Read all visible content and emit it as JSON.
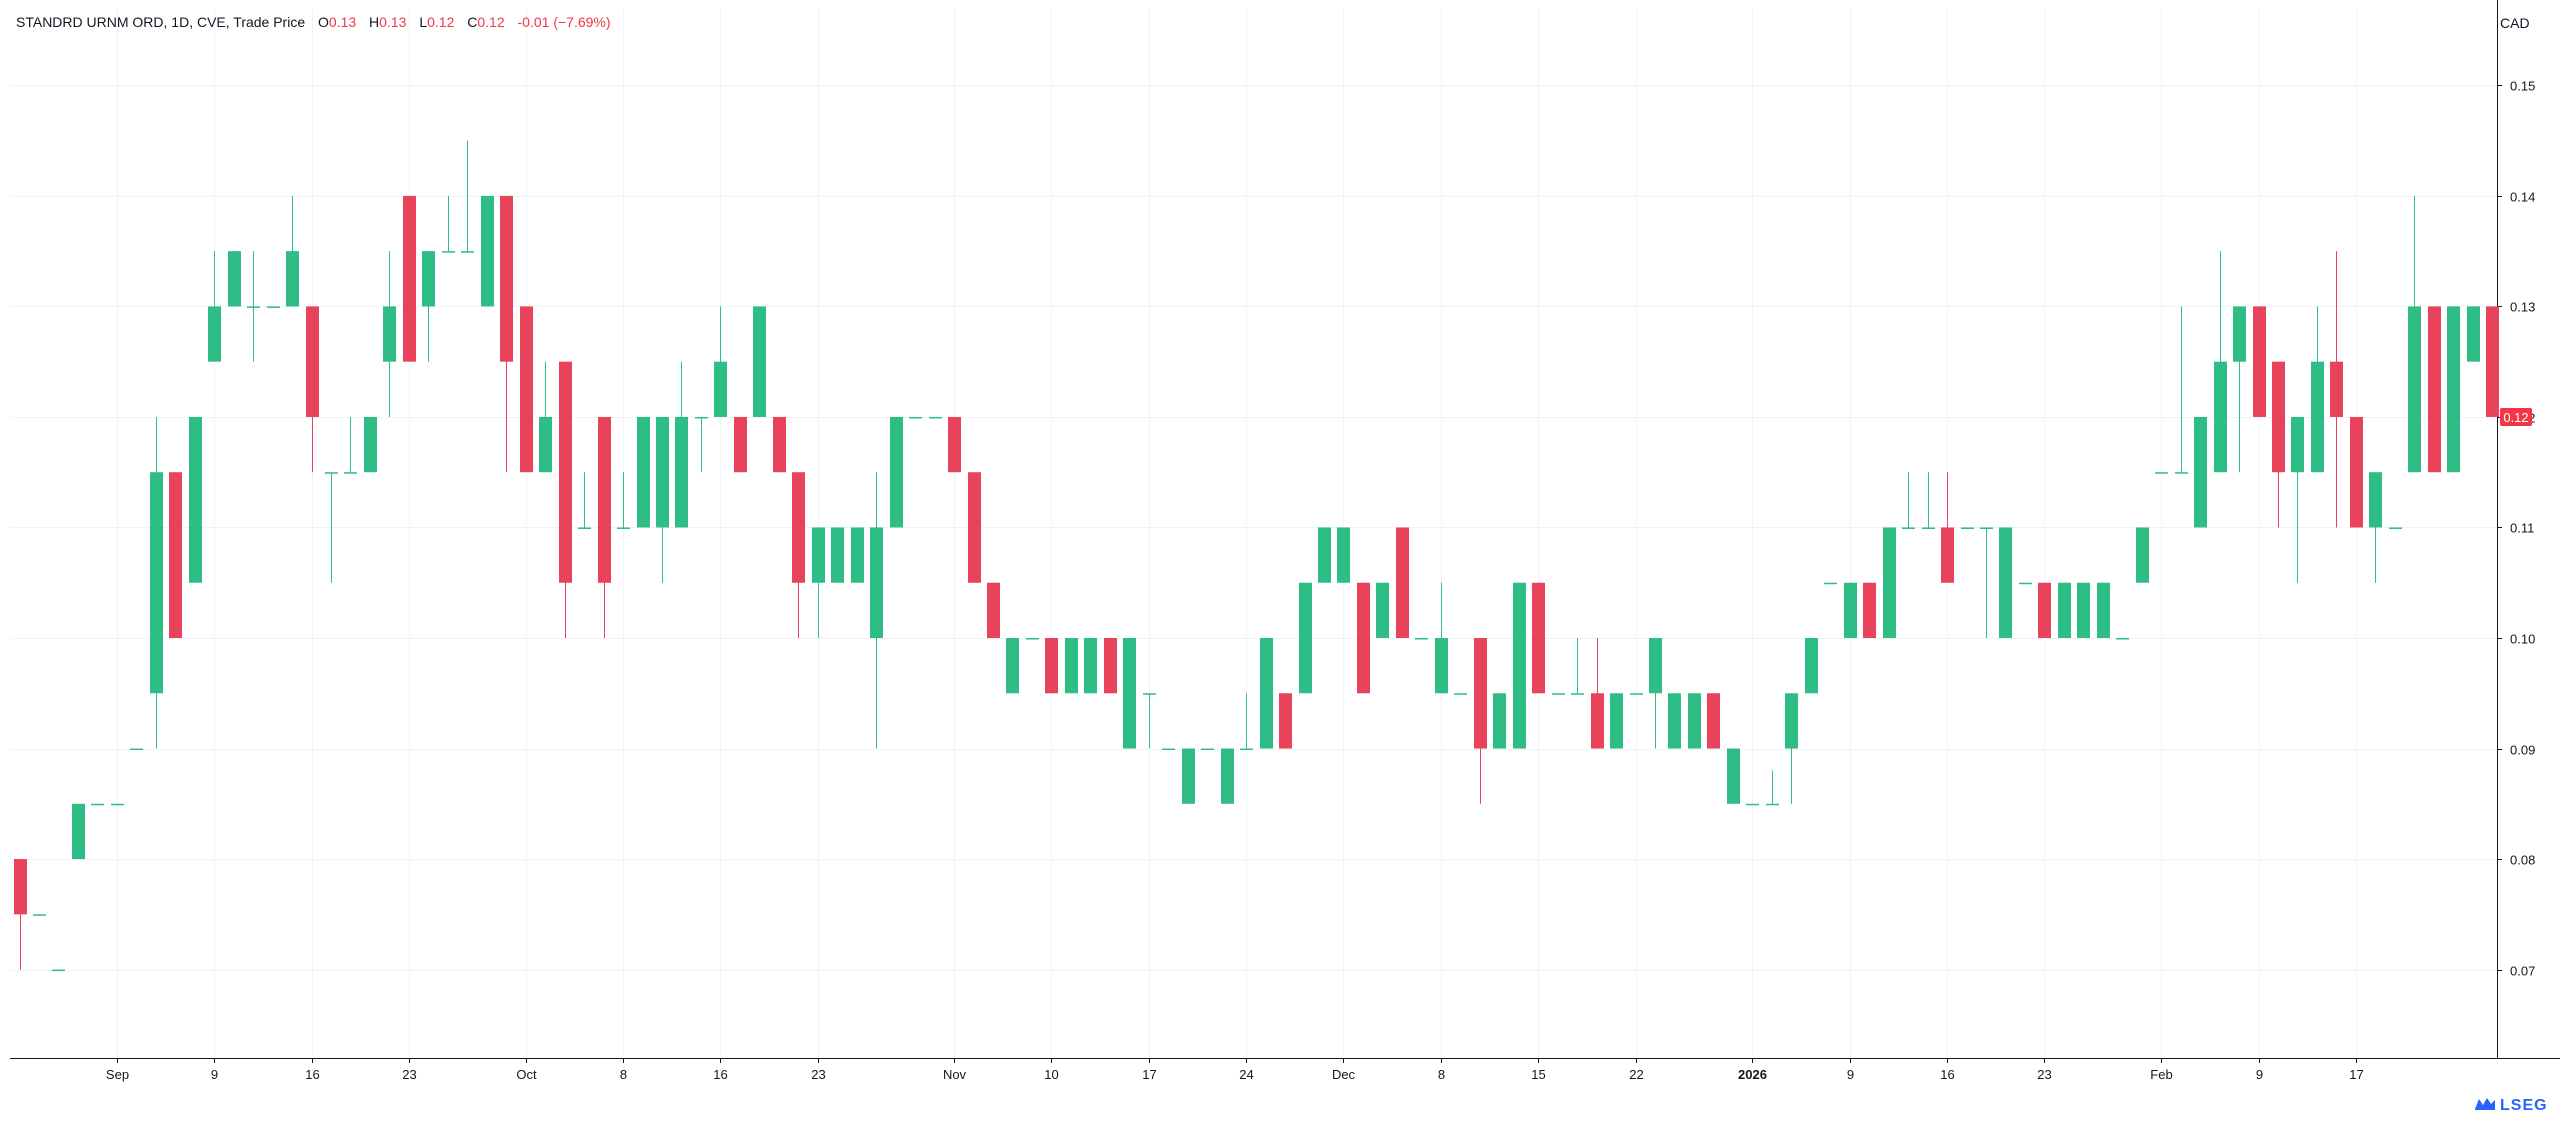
{
  "legend": {
    "symbol": "STANDRD URNM ORD, 1D, CVE, Trade Price",
    "open_key": "O",
    "open": "0.13",
    "high_key": "H",
    "high": "0.13",
    "low_key": "L",
    "low": "0.12",
    "close_key": "C",
    "close": "0.12",
    "change": "-0.01 (−7.69%)"
  },
  "currency": "CAD",
  "brand": "LSEG",
  "colors": {
    "up": "#2ebd85",
    "down": "#e8435a",
    "grid": "#f0f3fa",
    "axis": "#131722",
    "last_price_bg": "#f23645"
  },
  "chart_data": {
    "type": "candlestick",
    "ylim": [
      0.062,
      0.157
    ],
    "y_ticks": [
      "0.07",
      "0.08",
      "0.09",
      "0.10",
      "0.11",
      "0.12",
      "0.13",
      "0.14",
      "0.15"
    ],
    "x_ticks": [
      {
        "label": "Sep",
        "i": 5,
        "bold": false
      },
      {
        "label": "9",
        "i": 10,
        "bold": false
      },
      {
        "label": "16",
        "i": 15,
        "bold": false
      },
      {
        "label": "23",
        "i": 20,
        "bold": false
      },
      {
        "label": "Oct",
        "i": 26,
        "bold": false
      },
      {
        "label": "8",
        "i": 31,
        "bold": false
      },
      {
        "label": "16",
        "i": 36,
        "bold": false
      },
      {
        "label": "23",
        "i": 41,
        "bold": false
      },
      {
        "label": "Nov",
        "i": 48,
        "bold": false
      },
      {
        "label": "10",
        "i": 53,
        "bold": false
      },
      {
        "label": "17",
        "i": 58,
        "bold": false
      },
      {
        "label": "24",
        "i": 63,
        "bold": false
      },
      {
        "label": "Dec",
        "i": 68,
        "bold": false
      },
      {
        "label": "8",
        "i": 73,
        "bold": false
      },
      {
        "label": "15",
        "i": 78,
        "bold": false
      },
      {
        "label": "22",
        "i": 83,
        "bold": false
      },
      {
        "label": "2026",
        "i": 89,
        "bold": true
      },
      {
        "label": "9",
        "i": 94,
        "bold": false
      },
      {
        "label": "16",
        "i": 99,
        "bold": false
      },
      {
        "label": "23",
        "i": 104,
        "bold": false
      },
      {
        "label": "Feb",
        "i": 110,
        "bold": false
      },
      {
        "label": "9",
        "i": 115,
        "bold": false
      },
      {
        "label": "17",
        "i": 120,
        "bold": false
      }
    ],
    "last_price": "0.12",
    "ohlc": [
      [
        0.08,
        0.08,
        0.07,
        0.075
      ],
      [
        0.075,
        0.075,
        0.075,
        0.075
      ],
      [
        0.07,
        0.07,
        0.07,
        0.07
      ],
      [
        0.08,
        0.085,
        0.08,
        0.085
      ],
      [
        0.085,
        0.085,
        0.085,
        0.085
      ],
      [
        0.085,
        0.085,
        0.085,
        0.085
      ],
      [
        0.09,
        0.09,
        0.09,
        0.09
      ],
      [
        0.095,
        0.12,
        0.09,
        0.115
      ],
      [
        0.115,
        0.115,
        0.1,
        0.1
      ],
      [
        0.105,
        0.12,
        0.105,
        0.12
      ],
      [
        0.125,
        0.135,
        0.125,
        0.13
      ],
      [
        0.13,
        0.135,
        0.13,
        0.135
      ],
      [
        0.13,
        0.135,
        0.125,
        0.13
      ],
      [
        0.13,
        0.13,
        0.13,
        0.13
      ],
      [
        0.13,
        0.14,
        0.13,
        0.135
      ],
      [
        0.13,
        0.13,
        0.115,
        0.12
      ],
      [
        0.115,
        0.115,
        0.105,
        0.115
      ],
      [
        0.115,
        0.12,
        0.115,
        0.115
      ],
      [
        0.115,
        0.12,
        0.115,
        0.12
      ],
      [
        0.125,
        0.135,
        0.12,
        0.13
      ],
      [
        0.14,
        0.14,
        0.125,
        0.125
      ],
      [
        0.13,
        0.135,
        0.125,
        0.135
      ],
      [
        0.135,
        0.14,
        0.135,
        0.135
      ],
      [
        0.135,
        0.145,
        0.135,
        0.135
      ],
      [
        0.13,
        0.14,
        0.13,
        0.14
      ],
      [
        0.14,
        0.14,
        0.115,
        0.125
      ],
      [
        0.13,
        0.13,
        0.115,
        0.115
      ],
      [
        0.115,
        0.125,
        0.115,
        0.12
      ],
      [
        0.125,
        0.125,
        0.1,
        0.105
      ],
      [
        0.11,
        0.115,
        0.11,
        0.11
      ],
      [
        0.12,
        0.12,
        0.1,
        0.105
      ],
      [
        0.11,
        0.115,
        0.11,
        0.11
      ],
      [
        0.11,
        0.12,
        0.11,
        0.12
      ],
      [
        0.11,
        0.12,
        0.105,
        0.12
      ],
      [
        0.11,
        0.125,
        0.11,
        0.12
      ],
      [
        0.12,
        0.12,
        0.115,
        0.12
      ],
      [
        0.12,
        0.13,
        0.12,
        0.125
      ],
      [
        0.12,
        0.12,
        0.115,
        0.115
      ],
      [
        0.12,
        0.13,
        0.12,
        0.13
      ],
      [
        0.12,
        0.12,
        0.115,
        0.115
      ],
      [
        0.115,
        0.115,
        0.1,
        0.105
      ],
      [
        0.105,
        0.11,
        0.1,
        0.11
      ],
      [
        0.105,
        0.11,
        0.105,
        0.11
      ],
      [
        0.105,
        0.11,
        0.105,
        0.11
      ],
      [
        0.1,
        0.115,
        0.09,
        0.11
      ],
      [
        0.11,
        0.12,
        0.11,
        0.12
      ],
      [
        0.12,
        0.12,
        0.12,
        0.12
      ],
      [
        0.12,
        0.12,
        0.12,
        0.12
      ],
      [
        0.12,
        0.12,
        0.115,
        0.115
      ],
      [
        0.115,
        0.115,
        0.105,
        0.105
      ],
      [
        0.105,
        0.105,
        0.1,
        0.1
      ],
      [
        0.095,
        0.1,
        0.095,
        0.1
      ],
      [
        0.1,
        0.1,
        0.1,
        0.1
      ],
      [
        0.1,
        0.1,
        0.095,
        0.095
      ],
      [
        0.095,
        0.1,
        0.095,
        0.1
      ],
      [
        0.095,
        0.1,
        0.095,
        0.1
      ],
      [
        0.1,
        0.1,
        0.095,
        0.095
      ],
      [
        0.09,
        0.1,
        0.09,
        0.1
      ],
      [
        0.095,
        0.095,
        0.09,
        0.095
      ],
      [
        0.09,
        0.09,
        0.09,
        0.09
      ],
      [
        0.085,
        0.09,
        0.085,
        0.09
      ],
      [
        0.09,
        0.09,
        0.09,
        0.09
      ],
      [
        0.085,
        0.09,
        0.085,
        0.09
      ],
      [
        0.09,
        0.095,
        0.09,
        0.09
      ],
      [
        0.09,
        0.1,
        0.09,
        0.1
      ],
      [
        0.095,
        0.095,
        0.09,
        0.09
      ],
      [
        0.095,
        0.105,
        0.095,
        0.105
      ],
      [
        0.105,
        0.11,
        0.105,
        0.11
      ],
      [
        0.105,
        0.11,
        0.105,
        0.11
      ],
      [
        0.105,
        0.105,
        0.095,
        0.095
      ],
      [
        0.1,
        0.105,
        0.1,
        0.105
      ],
      [
        0.11,
        0.11,
        0.1,
        0.1
      ],
      [
        0.1,
        0.1,
        0.1,
        0.1
      ],
      [
        0.095,
        0.105,
        0.095,
        0.1
      ],
      [
        0.095,
        0.095,
        0.095,
        0.095
      ],
      [
        0.1,
        0.1,
        0.085,
        0.09
      ],
      [
        0.09,
        0.095,
        0.09,
        0.095
      ],
      [
        0.09,
        0.105,
        0.09,
        0.105
      ],
      [
        0.105,
        0.105,
        0.095,
        0.095
      ],
      [
        0.095,
        0.095,
        0.095,
        0.095
      ],
      [
        0.095,
        0.1,
        0.095,
        0.095
      ],
      [
        0.095,
        0.1,
        0.09,
        0.09
      ],
      [
        0.09,
        0.095,
        0.09,
        0.095
      ],
      [
        0.095,
        0.095,
        0.095,
        0.095
      ],
      [
        0.095,
        0.1,
        0.09,
        0.1
      ],
      [
        0.09,
        0.095,
        0.09,
        0.095
      ],
      [
        0.09,
        0.095,
        0.09,
        0.095
      ],
      [
        0.095,
        0.095,
        0.09,
        0.09
      ],
      [
        0.085,
        0.09,
        0.085,
        0.09
      ],
      [
        0.085,
        0.085,
        0.085,
        0.085
      ],
      [
        0.085,
        0.088,
        0.085,
        0.085
      ],
      [
        0.09,
        0.095,
        0.085,
        0.095
      ],
      [
        0.095,
        0.1,
        0.095,
        0.1
      ],
      [
        0.105,
        0.105,
        0.105,
        0.105
      ],
      [
        0.1,
        0.105,
        0.1,
        0.105
      ],
      [
        0.105,
        0.105,
        0.1,
        0.1
      ],
      [
        0.1,
        0.11,
        0.1,
        0.11
      ],
      [
        0.11,
        0.115,
        0.11,
        0.11
      ],
      [
        0.11,
        0.115,
        0.11,
        0.11
      ],
      [
        0.11,
        0.115,
        0.105,
        0.105
      ],
      [
        0.11,
        0.11,
        0.11,
        0.11
      ],
      [
        0.11,
        0.11,
        0.1,
        0.11
      ],
      [
        0.1,
        0.11,
        0.1,
        0.11
      ],
      [
        0.105,
        0.105,
        0.105,
        0.105
      ],
      [
        0.105,
        0.105,
        0.1,
        0.1
      ],
      [
        0.1,
        0.105,
        0.1,
        0.105
      ],
      [
        0.1,
        0.105,
        0.1,
        0.105
      ],
      [
        0.1,
        0.105,
        0.1,
        0.105
      ],
      [
        0.1,
        0.1,
        0.1,
        0.1
      ],
      [
        0.105,
        0.11,
        0.105,
        0.11
      ],
      [
        0.115,
        0.115,
        0.115,
        0.115
      ],
      [
        0.115,
        0.13,
        0.115,
        0.115
      ],
      [
        0.11,
        0.12,
        0.11,
        0.12
      ],
      [
        0.115,
        0.135,
        0.115,
        0.125
      ],
      [
        0.125,
        0.13,
        0.115,
        0.13
      ],
      [
        0.13,
        0.13,
        0.12,
        0.12
      ],
      [
        0.125,
        0.125,
        0.11,
        0.115
      ],
      [
        0.115,
        0.12,
        0.105,
        0.12
      ],
      [
        0.115,
        0.13,
        0.115,
        0.125
      ],
      [
        0.125,
        0.135,
        0.11,
        0.12
      ],
      [
        0.12,
        0.12,
        0.11,
        0.11
      ],
      [
        0.11,
        0.115,
        0.105,
        0.115
      ],
      [
        0.11,
        0.11,
        0.11,
        0.11
      ],
      [
        0.115,
        0.14,
        0.115,
        0.13
      ],
      [
        0.13,
        0.13,
        0.115,
        0.115
      ],
      [
        0.115,
        0.13,
        0.115,
        0.13
      ],
      [
        0.125,
        0.13,
        0.125,
        0.13
      ],
      [
        0.13,
        0.13,
        0.12,
        0.12
      ]
    ]
  }
}
